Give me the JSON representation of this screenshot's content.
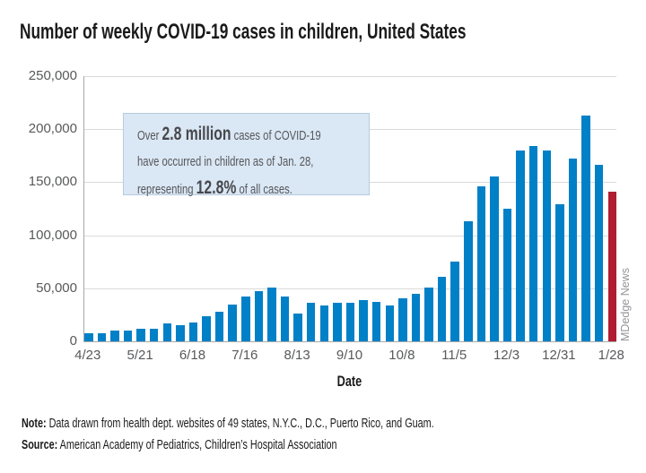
{
  "chart_data": {
    "type": "bar",
    "title": "Number of weekly COVID-19 cases in children, United States",
    "xlabel": "Date",
    "ylabel": "",
    "ylim": [
      0,
      250000
    ],
    "grid": true,
    "legend_position": "none",
    "x": [
      "4/23",
      "4/30",
      "5/7",
      "5/14",
      "5/21",
      "5/28",
      "6/4",
      "6/11",
      "6/18",
      "6/25",
      "7/2",
      "7/9",
      "7/16",
      "7/23",
      "7/30",
      "8/6",
      "8/13",
      "8/20",
      "8/27",
      "9/3",
      "9/10",
      "9/17",
      "9/24",
      "10/1",
      "10/8",
      "10/15",
      "10/22",
      "10/29",
      "11/5",
      "11/12",
      "11/19",
      "11/26",
      "12/3",
      "12/10",
      "12/17",
      "12/24",
      "12/31",
      "1/7",
      "1/14",
      "1/21",
      "1/28"
    ],
    "values": [
      7500,
      7500,
      10000,
      10000,
      11500,
      12000,
      17000,
      15000,
      18000,
      23500,
      27500,
      35000,
      42000,
      47000,
      51000,
      42000,
      26000,
      36500,
      34000,
      36500,
      36500,
      38500,
      37500,
      33500,
      40500,
      45000,
      51000,
      61000,
      75500,
      113000,
      146500,
      155000,
      125000,
      180000,
      184000,
      180000,
      129500,
      172500,
      213000,
      166500,
      141000
    ],
    "highlight_index": 40,
    "ytick_labels": [
      "0",
      "50,000",
      "100,000",
      "150,000",
      "200,000",
      "250,000"
    ],
    "xtick_labels": [
      "4/23",
      "5/21",
      "6/18",
      "7/16",
      "8/13",
      "9/10",
      "10/8",
      "11/5",
      "12/3",
      "12/31",
      "1/28"
    ],
    "xtick_every": 4,
    "colors": {
      "bar": "#0080c6",
      "highlight_bar": "#b01d31",
      "grid": "#d9dadb",
      "axis": "#a7a9ac",
      "tick_text": "#58595b",
      "annotation_bg": "#dae7f4",
      "annotation_border": "#b7cbdf"
    }
  },
  "annotation": {
    "line1_pre": "Over ",
    "line1_bold": "2.8 million",
    "line1_post": " cases of COVID-19",
    "line2": "have occurred in children as of Jan. 28,",
    "line3_pre": "representing ",
    "line3_bold": "12.8%",
    "line3_post": " of all cases."
  },
  "footer": {
    "note_label": "Note:",
    "note_text": " Data drawn from health dept. websites of 49 states, N.Y.C., D.C., Puerto Rico, and Guam.",
    "source_label": "Source:",
    "source_text": " American Academy of Pediatrics, Children’s Hospital Association"
  },
  "watermark": "MDedge News"
}
